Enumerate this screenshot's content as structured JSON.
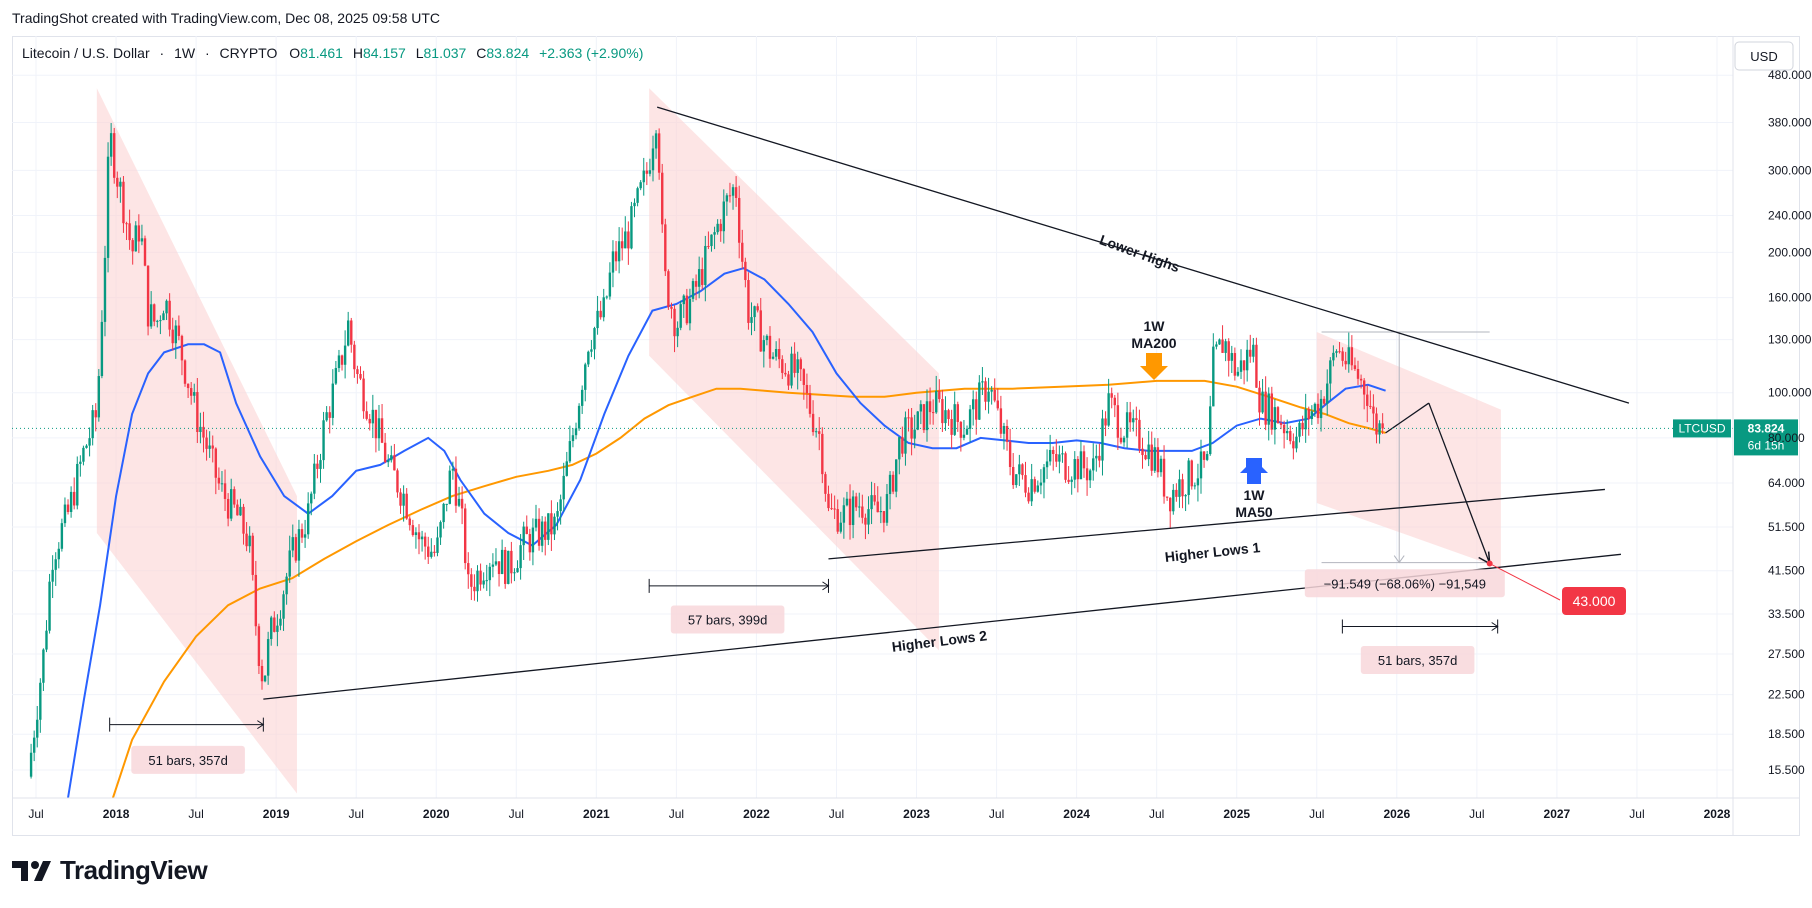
{
  "header": {
    "text": "TradingShot created with TradingView.com, Dec 08, 2025 09:58 UTC"
  },
  "footer": {
    "brand": "TradingView",
    "logo_icon": "tradingview-logo-icon"
  },
  "colors": {
    "up": "#089981",
    "down": "#f23645",
    "ma50": "#2962ff",
    "ma200": "#ff9800",
    "zone": "#fbd3d3",
    "grid": "#f0f3fa",
    "text": "#131722",
    "price_badge": "#089981",
    "target_badge": "#f23645"
  },
  "chart_data": {
    "type": "candlestick",
    "symbol": {
      "name": "Litecoin / U.S. Dollar",
      "interval": "1W",
      "exchange": "CRYPTO",
      "ohlc_labels": {
        "O": "81.461",
        "H": "84.157",
        "L": "81.037",
        "C": "83.824"
      },
      "change": "+2.363 (+2.90%)"
    },
    "currency_button": "USD",
    "y_scale": "log",
    "ylim": [
      13.5,
      560
    ],
    "y_ticks": [
      15.5,
      18.5,
      22.5,
      27.5,
      33.5,
      41.5,
      51.5,
      64,
      80,
      100,
      130,
      160,
      200,
      240,
      300,
      380,
      480
    ],
    "y_tick_labels": [
      "15.500",
      "18.500",
      "22.500",
      "27.500",
      "33.500",
      "41.500",
      "51.500",
      "64.000",
      "80.000",
      "100.000",
      "130.000",
      "160.000",
      "200.000",
      "240.000",
      "300.000",
      "380.000",
      "480.000"
    ],
    "xlim": [
      2017.35,
      2028.1
    ],
    "x_ticks": [
      {
        "x": 2017.5,
        "label": "Jul",
        "bold": false
      },
      {
        "x": 2018.0,
        "label": "2018",
        "bold": true
      },
      {
        "x": 2018.5,
        "label": "Jul",
        "bold": false
      },
      {
        "x": 2019.0,
        "label": "2019",
        "bold": true
      },
      {
        "x": 2019.5,
        "label": "Jul",
        "bold": false
      },
      {
        "x": 2020.0,
        "label": "2020",
        "bold": true
      },
      {
        "x": 2020.5,
        "label": "Jul",
        "bold": false
      },
      {
        "x": 2021.0,
        "label": "2021",
        "bold": true
      },
      {
        "x": 2021.5,
        "label": "Jul",
        "bold": false
      },
      {
        "x": 2022.0,
        "label": "2022",
        "bold": true
      },
      {
        "x": 2022.5,
        "label": "Jul",
        "bold": false
      },
      {
        "x": 2023.0,
        "label": "2023",
        "bold": true
      },
      {
        "x": 2023.5,
        "label": "Jul",
        "bold": false
      },
      {
        "x": 2024.0,
        "label": "2024",
        "bold": true
      },
      {
        "x": 2024.5,
        "label": "Jul",
        "bold": false
      },
      {
        "x": 2025.0,
        "label": "2025",
        "bold": true
      },
      {
        "x": 2025.5,
        "label": "Jul",
        "bold": false
      },
      {
        "x": 2026.0,
        "label": "2026",
        "bold": true
      },
      {
        "x": 2026.5,
        "label": "Jul",
        "bold": false
      },
      {
        "x": 2027.0,
        "label": "2027",
        "bold": true
      },
      {
        "x": 2027.5,
        "label": "Jul",
        "bold": false
      },
      {
        "x": 2028.0,
        "label": "2028",
        "bold": true
      }
    ],
    "price_path": [
      [
        2017.45,
        15
      ],
      [
        2017.55,
        28
      ],
      [
        2017.6,
        45
      ],
      [
        2017.7,
        55
      ],
      [
        2017.8,
        75
      ],
      [
        2017.88,
        90
      ],
      [
        2017.93,
        200
      ],
      [
        2017.96,
        360
      ],
      [
        2018.0,
        300
      ],
      [
        2018.05,
        250
      ],
      [
        2018.1,
        200
      ],
      [
        2018.15,
        230
      ],
      [
        2018.2,
        150
      ],
      [
        2018.25,
        140
      ],
      [
        2018.3,
        160
      ],
      [
        2018.4,
        125
      ],
      [
        2018.5,
        90
      ],
      [
        2018.55,
        80
      ],
      [
        2018.65,
        62
      ],
      [
        2018.75,
        55
      ],
      [
        2018.83,
        48
      ],
      [
        2018.88,
        30
      ],
      [
        2018.92,
        24
      ],
      [
        2018.96,
        30
      ],
      [
        2019.02,
        35
      ],
      [
        2019.1,
        45
      ],
      [
        2019.2,
        55
      ],
      [
        2019.3,
        85
      ],
      [
        2019.4,
        115
      ],
      [
        2019.45,
        140
      ],
      [
        2019.5,
        110
      ],
      [
        2019.6,
        90
      ],
      [
        2019.7,
        70
      ],
      [
        2019.8,
        60
      ],
      [
        2019.9,
        48
      ],
      [
        2020.0,
        45
      ],
      [
        2020.1,
        70
      ],
      [
        2020.17,
        50
      ],
      [
        2020.2,
        38
      ],
      [
        2020.28,
        42
      ],
      [
        2020.35,
        45
      ],
      [
        2020.45,
        42
      ],
      [
        2020.55,
        48
      ],
      [
        2020.65,
        50
      ],
      [
        2020.75,
        52
      ],
      [
        2020.85,
        80
      ],
      [
        2020.95,
        130
      ],
      [
        2021.05,
        150
      ],
      [
        2021.1,
        190
      ],
      [
        2021.2,
        220
      ],
      [
        2021.32,
        300
      ],
      [
        2021.38,
        410
      ],
      [
        2021.42,
        180
      ],
      [
        2021.5,
        140
      ],
      [
        2021.6,
        160
      ],
      [
        2021.7,
        200
      ],
      [
        2021.8,
        250
      ],
      [
        2021.87,
        280
      ],
      [
        2021.9,
        210
      ],
      [
        2021.95,
        150
      ],
      [
        2022.0,
        140
      ],
      [
        2022.1,
        120
      ],
      [
        2022.25,
        110
      ],
      [
        2022.3,
        100
      ],
      [
        2022.4,
        80
      ],
      [
        2022.45,
        55
      ],
      [
        2022.55,
        55
      ],
      [
        2022.65,
        58
      ],
      [
        2022.75,
        55
      ],
      [
        2022.82,
        58
      ],
      [
        2022.9,
        80
      ],
      [
        2023.0,
        85
      ],
      [
        2023.1,
        95
      ],
      [
        2023.2,
        90
      ],
      [
        2023.3,
        85
      ],
      [
        2023.45,
        105
      ],
      [
        2023.52,
        85
      ],
      [
        2023.6,
        68
      ],
      [
        2023.7,
        64
      ],
      [
        2023.85,
        72
      ],
      [
        2023.95,
        70
      ],
      [
        2024.0,
        70
      ],
      [
        2024.1,
        68
      ],
      [
        2024.2,
        95
      ],
      [
        2024.28,
        85
      ],
      [
        2024.4,
        80
      ],
      [
        2024.5,
        72
      ],
      [
        2024.57,
        60
      ],
      [
        2024.65,
        64
      ],
      [
        2024.75,
        68
      ],
      [
        2024.82,
        70
      ],
      [
        2024.85,
        115
      ],
      [
        2024.92,
        130
      ],
      [
        2025.0,
        110
      ],
      [
        2025.1,
        125
      ],
      [
        2025.15,
        95
      ],
      [
        2025.25,
        90
      ],
      [
        2025.3,
        85
      ],
      [
        2025.38,
        80
      ],
      [
        2025.45,
        90
      ],
      [
        2025.52,
        95
      ],
      [
        2025.58,
        110
      ],
      [
        2025.62,
        125
      ],
      [
        2025.7,
        115
      ],
      [
        2025.76,
        108
      ],
      [
        2025.82,
        100
      ],
      [
        2025.86,
        85
      ],
      [
        2025.93,
        83.8
      ]
    ],
    "ma50_path": [
      [
        2017.7,
        13.5
      ],
      [
        2017.8,
        22
      ],
      [
        2017.9,
        35
      ],
      [
        2018.0,
        60
      ],
      [
        2018.1,
        90
      ],
      [
        2018.2,
        110
      ],
      [
        2018.3,
        122
      ],
      [
        2018.45,
        127
      ],
      [
        2018.55,
        127
      ],
      [
        2018.65,
        122
      ],
      [
        2018.75,
        95
      ],
      [
        2018.9,
        73
      ],
      [
        2019.05,
        60
      ],
      [
        2019.2,
        55
      ],
      [
        2019.35,
        60
      ],
      [
        2019.5,
        68
      ],
      [
        2019.65,
        70
      ],
      [
        2019.8,
        75
      ],
      [
        2019.95,
        80
      ],
      [
        2020.05,
        75
      ],
      [
        2020.15,
        65
      ],
      [
        2020.3,
        55
      ],
      [
        2020.45,
        50
      ],
      [
        2020.6,
        47
      ],
      [
        2020.75,
        52
      ],
      [
        2020.9,
        65
      ],
      [
        2021.05,
        90
      ],
      [
        2021.2,
        120
      ],
      [
        2021.35,
        150
      ],
      [
        2021.5,
        155
      ],
      [
        2021.65,
        165
      ],
      [
        2021.8,
        180
      ],
      [
        2021.92,
        185
      ],
      [
        2022.05,
        175
      ],
      [
        2022.2,
        155
      ],
      [
        2022.35,
        135
      ],
      [
        2022.5,
        110
      ],
      [
        2022.65,
        95
      ],
      [
        2022.8,
        85
      ],
      [
        2022.95,
        78
      ],
      [
        2023.1,
        76
      ],
      [
        2023.25,
        76
      ],
      [
        2023.4,
        80
      ],
      [
        2023.55,
        79
      ],
      [
        2023.7,
        78
      ],
      [
        2023.85,
        78
      ],
      [
        2024.0,
        79
      ],
      [
        2024.15,
        78
      ],
      [
        2024.3,
        76
      ],
      [
        2024.45,
        75
      ],
      [
        2024.6,
        75
      ],
      [
        2024.72,
        75
      ],
      [
        2024.85,
        78
      ],
      [
        2025.0,
        85
      ],
      [
        2025.15,
        88
      ],
      [
        2025.3,
        86
      ],
      [
        2025.45,
        88
      ],
      [
        2025.55,
        94
      ],
      [
        2025.68,
        102
      ],
      [
        2025.82,
        104
      ],
      [
        2025.93,
        101
      ]
    ],
    "ma200_path": [
      [
        2017.98,
        13.5
      ],
      [
        2018.1,
        18
      ],
      [
        2018.3,
        24
      ],
      [
        2018.5,
        30
      ],
      [
        2018.7,
        35
      ],
      [
        2018.9,
        38
      ],
      [
        2019.1,
        40
      ],
      [
        2019.3,
        44
      ],
      [
        2019.5,
        48
      ],
      [
        2019.7,
        52
      ],
      [
        2019.9,
        56
      ],
      [
        2020.1,
        60
      ],
      [
        2020.3,
        63
      ],
      [
        2020.5,
        66
      ],
      [
        2020.7,
        68
      ],
      [
        2020.85,
        70
      ],
      [
        2021.0,
        74
      ],
      [
        2021.15,
        80
      ],
      [
        2021.3,
        88
      ],
      [
        2021.45,
        94
      ],
      [
        2021.6,
        98
      ],
      [
        2021.75,
        102
      ],
      [
        2021.9,
        102
      ],
      [
        2022.05,
        101
      ],
      [
        2022.2,
        100
      ],
      [
        2022.4,
        99
      ],
      [
        2022.6,
        98
      ],
      [
        2022.8,
        98
      ],
      [
        2023.0,
        100
      ],
      [
        2023.3,
        102
      ],
      [
        2023.6,
        102
      ],
      [
        2023.9,
        103
      ],
      [
        2024.2,
        104
      ],
      [
        2024.5,
        106
      ],
      [
        2024.8,
        106
      ],
      [
        2025.0,
        103
      ],
      [
        2025.2,
        98
      ],
      [
        2025.4,
        93
      ],
      [
        2025.55,
        90
      ],
      [
        2025.7,
        86
      ],
      [
        2025.82,
        84
      ],
      [
        2025.93,
        82
      ]
    ],
    "lines": [
      {
        "name": "lower-highs-trendline",
        "x1": 2021.38,
        "y1": 410,
        "x2": 2027.45,
        "y2": 95
      },
      {
        "name": "higher-lows-1-trendline",
        "x1": 2022.45,
        "y1": 44,
        "x2": 2027.3,
        "y2": 62
      },
      {
        "name": "higher-lows-2-trendline",
        "x1": 2018.92,
        "y1": 22,
        "x2": 2027.4,
        "y2": 45
      },
      {
        "name": "projection-up-line",
        "x1": 2025.93,
        "y1": 82,
        "x2": 2026.2,
        "y2": 95
      },
      {
        "name": "projection-down-line",
        "x1": 2026.2,
        "y1": 95,
        "x2": 2026.58,
        "y2": 43
      }
    ],
    "zones": [
      {
        "name": "zone-2018-decline",
        "points": [
          [
            2017.88,
            450
          ],
          [
            2019.13,
            60
          ],
          [
            2019.13,
            13.8
          ],
          [
            2017.88,
            50
          ]
        ]
      },
      {
        "name": "zone-2021-decline",
        "points": [
          [
            2021.33,
            450
          ],
          [
            2023.14,
            110
          ],
          [
            2023.14,
            28
          ],
          [
            2021.33,
            120
          ]
        ]
      },
      {
        "name": "zone-2025-projection",
        "points": [
          [
            2025.5,
            135
          ],
          [
            2026.65,
            92
          ],
          [
            2026.65,
            42
          ],
          [
            2025.5,
            58
          ]
        ]
      }
    ],
    "measurements": [
      {
        "name": "ruler-2018",
        "x1": 2017.96,
        "x2": 2018.92,
        "y": 19.4
      },
      {
        "name": "ruler-2022",
        "x1": 2021.33,
        "x2": 2022.45,
        "y": 38.5
      },
      {
        "name": "ruler-2026",
        "x1": 2025.66,
        "x2": 2026.63,
        "y": 31.5
      }
    ],
    "range_box": {
      "x1": 2025.53,
      "x2": 2026.58,
      "top": 135,
      "bottom": 43.2
    },
    "labels": [
      {
        "name": "label-bars-2018",
        "text": "51 bars, 357d",
        "x": 2018.45,
        "y": 16.3
      },
      {
        "name": "label-bars-2022",
        "text": "57 bars, 399d",
        "x": 2021.82,
        "y": 32.6
      },
      {
        "name": "label-bars-2026",
        "text": "51 bars, 357d",
        "x": 2026.13,
        "y": 26.7
      },
      {
        "name": "label-range-change",
        "text": "−91.549 (−68.06%) −91,549",
        "x": 2026.05,
        "y": 39.0
      }
    ],
    "annotations": {
      "lower_highs": "Lower Highs",
      "higher_lows_1": "Higher Lows 1",
      "higher_lows_2": "Higher Lows 2",
      "ma200_line1": "1W",
      "ma200_line2": "MA200",
      "ma50_line1": "1W",
      "ma50_line2": "MA50"
    },
    "price_badge": {
      "symbol": "LTCUSD",
      "price": "83.824",
      "countdown": "6d 15h",
      "value": 83.824
    },
    "target_badge": {
      "text": "43.000",
      "value": 43.0,
      "x": 2026.58
    }
  }
}
